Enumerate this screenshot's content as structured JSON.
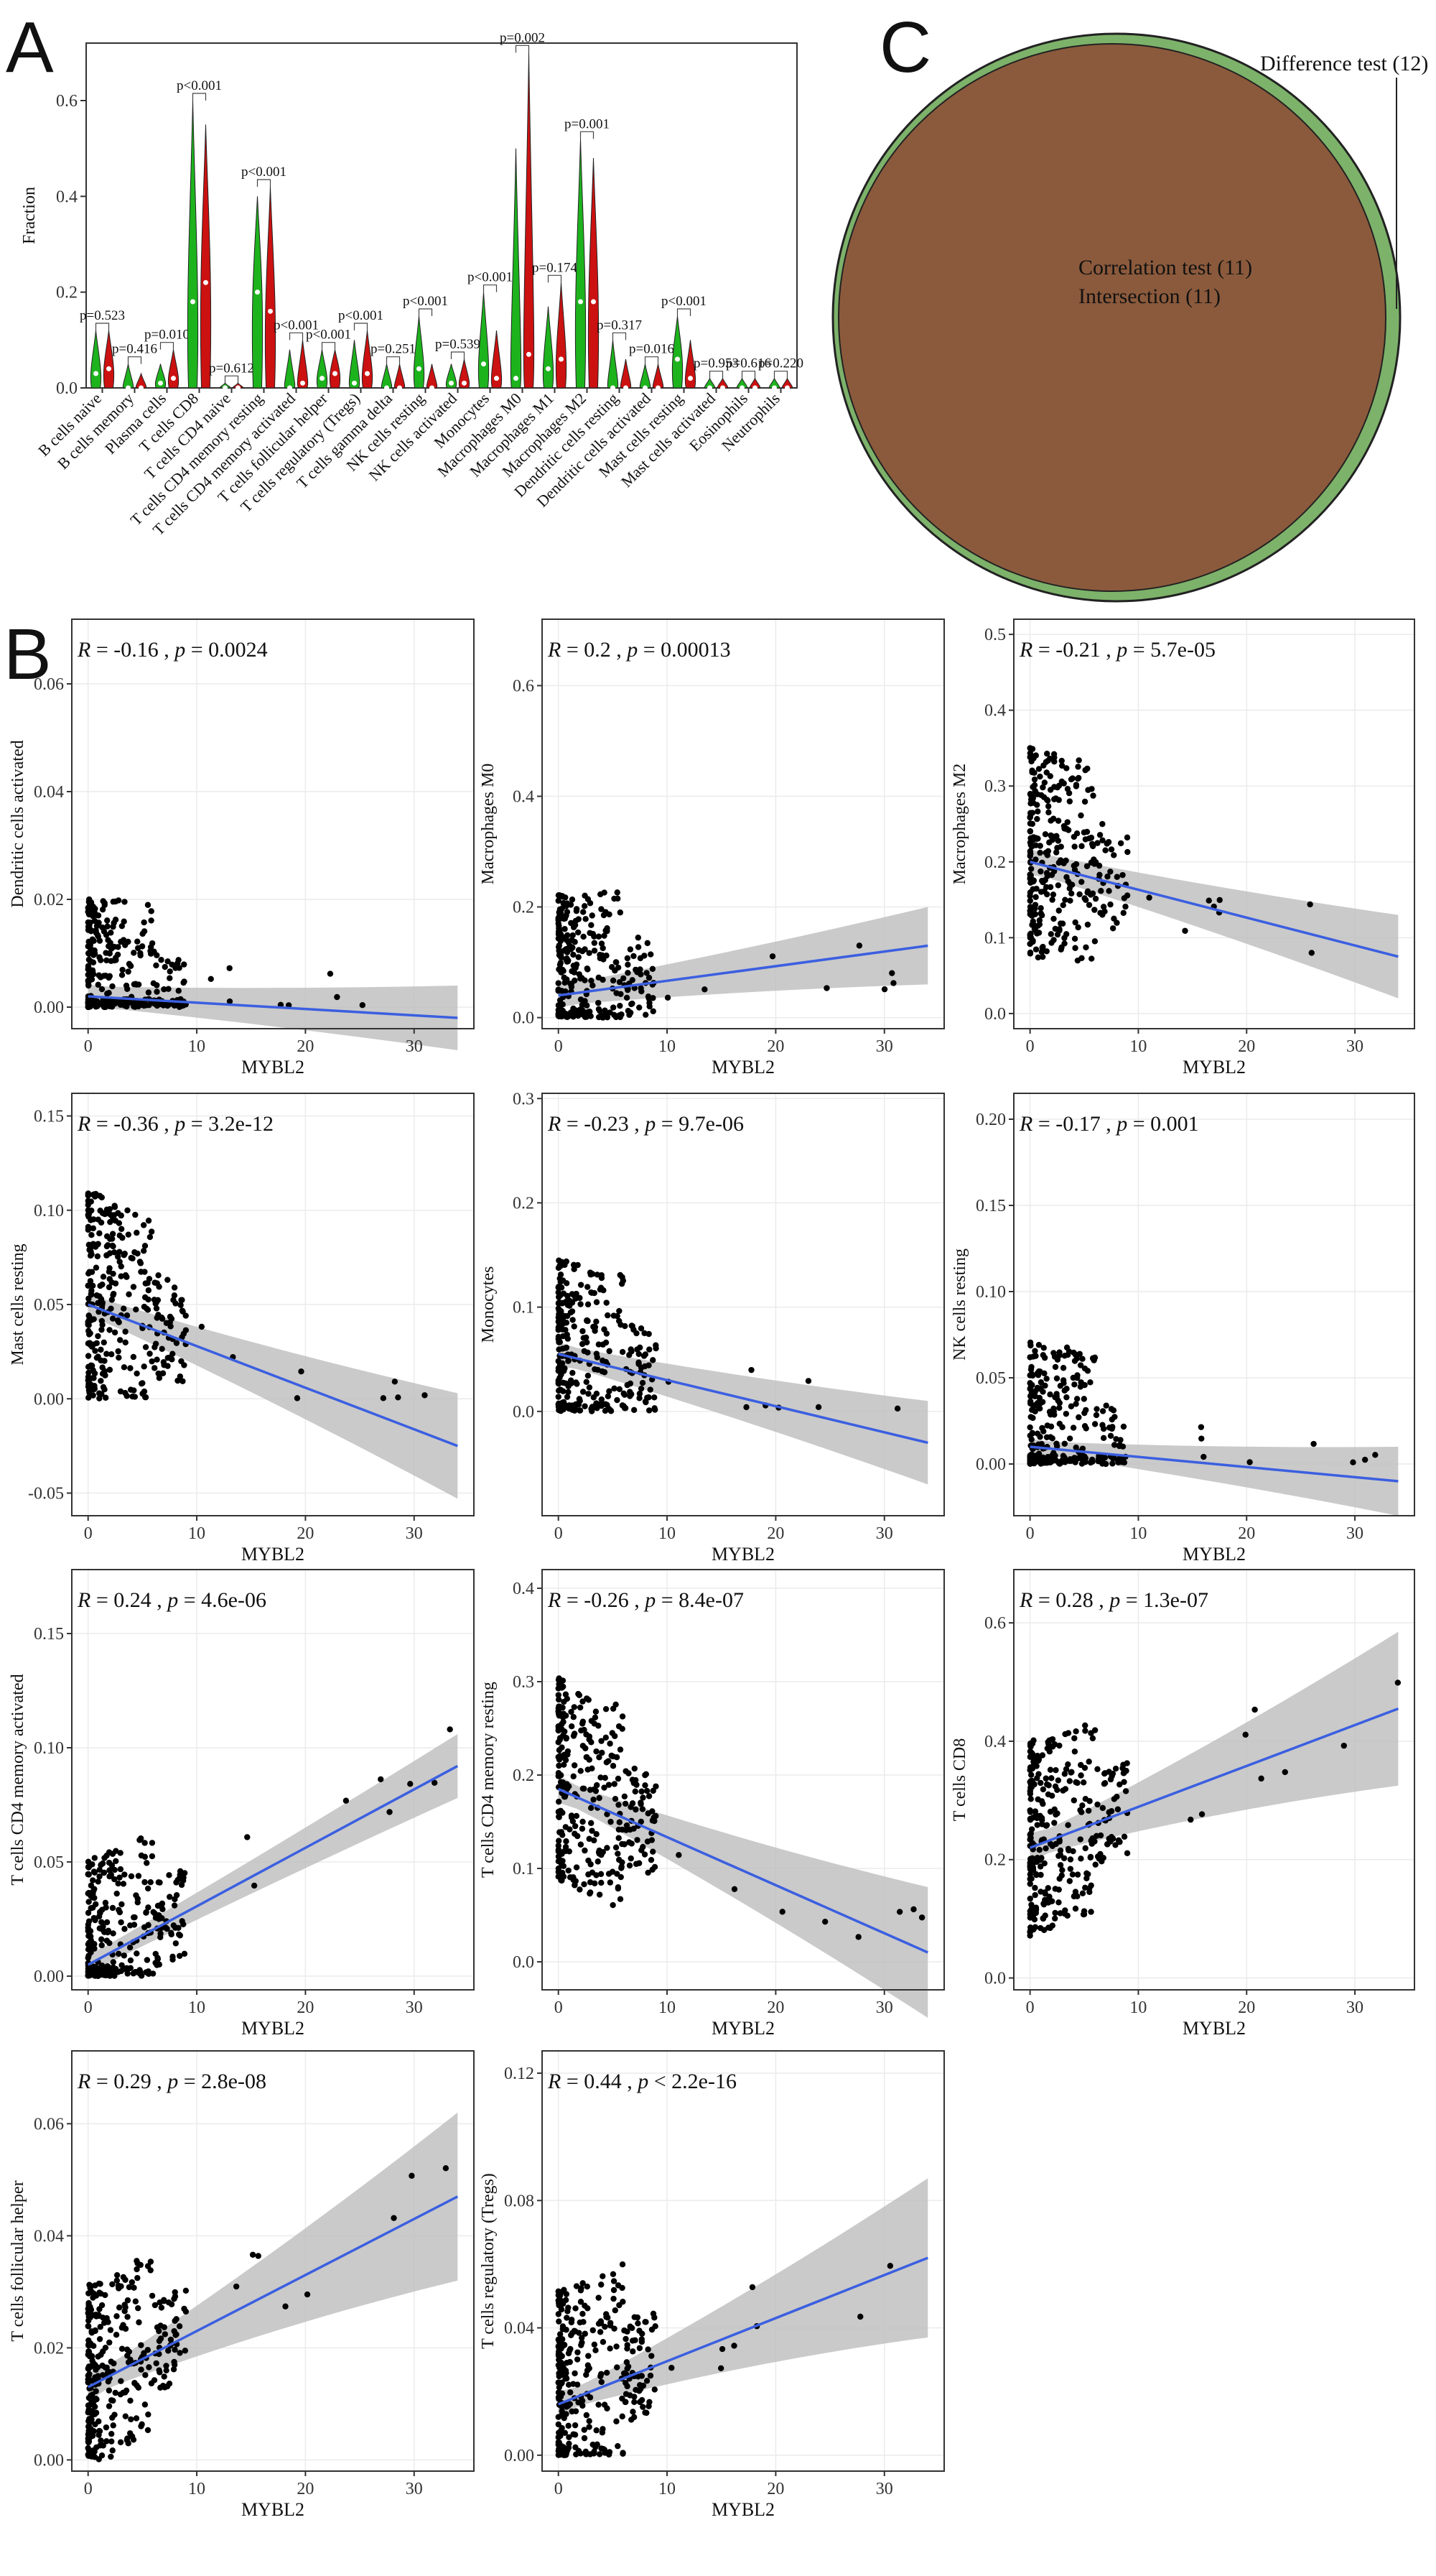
{
  "panel_labels": {
    "a": "A",
    "b": "B",
    "c": "C"
  },
  "colors": {
    "normal": "#1db31d",
    "tumor": "#cc1111",
    "fit": "#3b5fe0",
    "band": "#bdbdbd",
    "venn_outer": "#7db26a",
    "venn_inner": "#8b5a3c",
    "point": "#000000"
  },
  "chart_data": [
    {
      "id": "A",
      "type": "violin",
      "ylabel": "Fraction",
      "ylim": [
        0,
        0.72
      ],
      "yticks": [
        0.0,
        0.2,
        0.4,
        0.6
      ],
      "categories": [
        "B cells naive",
        "B cells memory",
        "Plasma cells",
        "T cells CD8",
        "T cells CD4 naive",
        "T cells CD4 memory resting",
        "T cells CD4 memory activated",
        "T cells follicular helper",
        "T cells regulatory (Tregs)",
        "T cells gamma delta",
        "NK cells resting",
        "NK cells activated",
        "Monocytes",
        "Macrophages M0",
        "Macrophages M1",
        "Macrophages M2",
        "Dendritic cells resting",
        "Dendritic cells activated",
        "Mast cells resting",
        "Mast cells activated",
        "Eosinophils",
        "Neutrophils"
      ],
      "pvalues": [
        "p=0.523",
        "p=0.416",
        "p=0.010",
        "p<0.001",
        "p=0.612",
        "p<0.001",
        "p<0.001",
        "p<0.001",
        "p<0.001",
        "p=0.251",
        "p<0.001",
        "p=0.539",
        "p<0.001",
        "p=0.002",
        "p=0.174",
        "p=0.001",
        "p=0.317",
        "p=0.016",
        "p<0.001",
        "p=0.953",
        "p=0.616",
        "p=0.220"
      ],
      "normal_max": [
        0.12,
        0.05,
        0.05,
        0.6,
        0.01,
        0.4,
        0.08,
        0.08,
        0.1,
        0.05,
        0.15,
        0.05,
        0.2,
        0.5,
        0.17,
        0.52,
        0.1,
        0.05,
        0.15,
        0.02,
        0.02,
        0.02
      ],
      "tumor_max": [
        0.12,
        0.03,
        0.08,
        0.55,
        0.01,
        0.42,
        0.1,
        0.08,
        0.12,
        0.05,
        0.05,
        0.06,
        0.12,
        0.7,
        0.22,
        0.48,
        0.06,
        0.05,
        0.1,
        0.02,
        0.02,
        0.02
      ],
      "normal_med": [
        0.03,
        0.0,
        0.01,
        0.18,
        0.0,
        0.2,
        0.0,
        0.02,
        0.01,
        0.0,
        0.04,
        0.01,
        0.05,
        0.02,
        0.04,
        0.18,
        0.0,
        0.0,
        0.06,
        0.0,
        0.0,
        0.0
      ],
      "tumor_med": [
        0.04,
        0.0,
        0.02,
        0.22,
        0.0,
        0.16,
        0.01,
        0.03,
        0.03,
        0.0,
        0.0,
        0.01,
        0.02,
        0.07,
        0.06,
        0.18,
        0.0,
        0.0,
        0.02,
        0.0,
        0.0,
        0.0
      ]
    },
    {
      "id": "C",
      "type": "venn",
      "sets": [
        {
          "label": "Difference test (12)",
          "size": 12
        },
        {
          "label": "Correlation test (11)",
          "size": 11
        },
        {
          "label": "Intersection (11)",
          "size": 11
        }
      ]
    },
    {
      "id": "B",
      "type": "scatter",
      "xlabel": "MYBL2",
      "xticks": [
        0,
        10,
        20,
        30
      ],
      "xlim": [
        -1.5,
        35.5
      ],
      "plots": [
        {
          "ylabel": "Dendritic cells activated",
          "r": "-0.16",
          "p_op": " = ",
          "p": "0.0024",
          "ylim": [
            -0.004,
            0.072
          ],
          "yticks": [
            0.0,
            0.02,
            0.04,
            0.06
          ],
          "fit": [
            0.002,
            -0.002
          ],
          "band": [
            0.002,
            0.006
          ]
        },
        {
          "ylabel": "Macrophages M0",
          "r": "0.2",
          "p_op": " = ",
          "p": "0.00013",
          "ylim": [
            -0.02,
            0.72
          ],
          "yticks": [
            0.0,
            0.2,
            0.4,
            0.6
          ],
          "fit": [
            0.04,
            0.13
          ],
          "band": [
            0.02,
            0.07
          ]
        },
        {
          "ylabel": "Macrophages M2",
          "r": "-0.21",
          "p_op": " = ",
          "p": "5.7e-05",
          "ylim": [
            -0.02,
            0.52
          ],
          "yticks": [
            0.0,
            0.1,
            0.2,
            0.3,
            0.4,
            0.5
          ],
          "fit": [
            0.2,
            0.075
          ],
          "band": [
            0.015,
            0.055
          ]
        },
        {
          "ylabel": "Mast cells resting",
          "r": "-0.36",
          "p_op": " = ",
          "p": "3.2e-12",
          "ylim": [
            -0.062,
            0.162
          ],
          "yticks": [
            -0.05,
            0.0,
            0.05,
            0.1,
            0.15
          ],
          "fit": [
            0.05,
            -0.025
          ],
          "band": [
            0.006,
            0.028
          ]
        },
        {
          "ylabel": "Monocytes",
          "r": "-0.23",
          "p_op": " = ",
          "p": "9.7e-06",
          "ylim": [
            -0.1,
            0.305
          ],
          "yticks": [
            0.0,
            0.1,
            0.2,
            0.3
          ],
          "fit": [
            0.055,
            -0.03
          ],
          "band": [
            0.01,
            0.04
          ]
        },
        {
          "ylabel": "NK cells resting",
          "r": "-0.17",
          "p_op": " = ",
          "p": "0.001",
          "ylim": [
            -0.03,
            0.215
          ],
          "yticks": [
            0.0,
            0.05,
            0.1,
            0.15,
            0.2
          ],
          "fit": [
            0.01,
            -0.01
          ],
          "band": [
            0.004,
            0.02
          ]
        },
        {
          "ylabel": "T cells CD4 memory activated",
          "r": "0.24",
          "p_op": " = ",
          "p": "4.6e-06",
          "ylim": [
            -0.006,
            0.178
          ],
          "yticks": [
            0.0,
            0.05,
            0.1,
            0.15
          ],
          "fit": [
            0.005,
            0.092
          ],
          "band": [
            0.004,
            0.014
          ]
        },
        {
          "ylabel": "T cells CD4 memory resting",
          "r": "-0.26",
          "p_op": " = ",
          "p": "8.4e-07",
          "ylim": [
            -0.03,
            0.42
          ],
          "yticks": [
            0.0,
            0.1,
            0.2,
            0.3,
            0.4
          ],
          "fit": [
            0.185,
            0.01
          ],
          "band": [
            0.012,
            0.07
          ]
        },
        {
          "ylabel": "T cells CD8",
          "r": "0.28",
          "p_op": " = ",
          "p": "1.3e-07",
          "ylim": [
            -0.02,
            0.69
          ],
          "yticks": [
            0.0,
            0.2,
            0.4,
            0.6
          ],
          "fit": [
            0.22,
            0.455
          ],
          "band": [
            0.02,
            0.13
          ]
        },
        {
          "ylabel": "T cells follicular helper",
          "r": "0.29",
          "p_op": " = ",
          "p": "2.8e-08",
          "ylim": [
            -0.002,
            0.073
          ],
          "yticks": [
            0.0,
            0.02,
            0.04,
            0.06
          ],
          "fit": [
            0.013,
            0.047
          ],
          "band": [
            0.002,
            0.015
          ]
        },
        {
          "ylabel": "T cells regulatory (Tregs)",
          "r": "0.44",
          "p_op": " < ",
          "p": "2.2e-16",
          "ylim": [
            -0.005,
            0.127
          ],
          "yticks": [
            0.0,
            0.04,
            0.08,
            0.12
          ],
          "fit": [
            0.016,
            0.062
          ],
          "band": [
            0.003,
            0.025
          ]
        }
      ]
    }
  ]
}
